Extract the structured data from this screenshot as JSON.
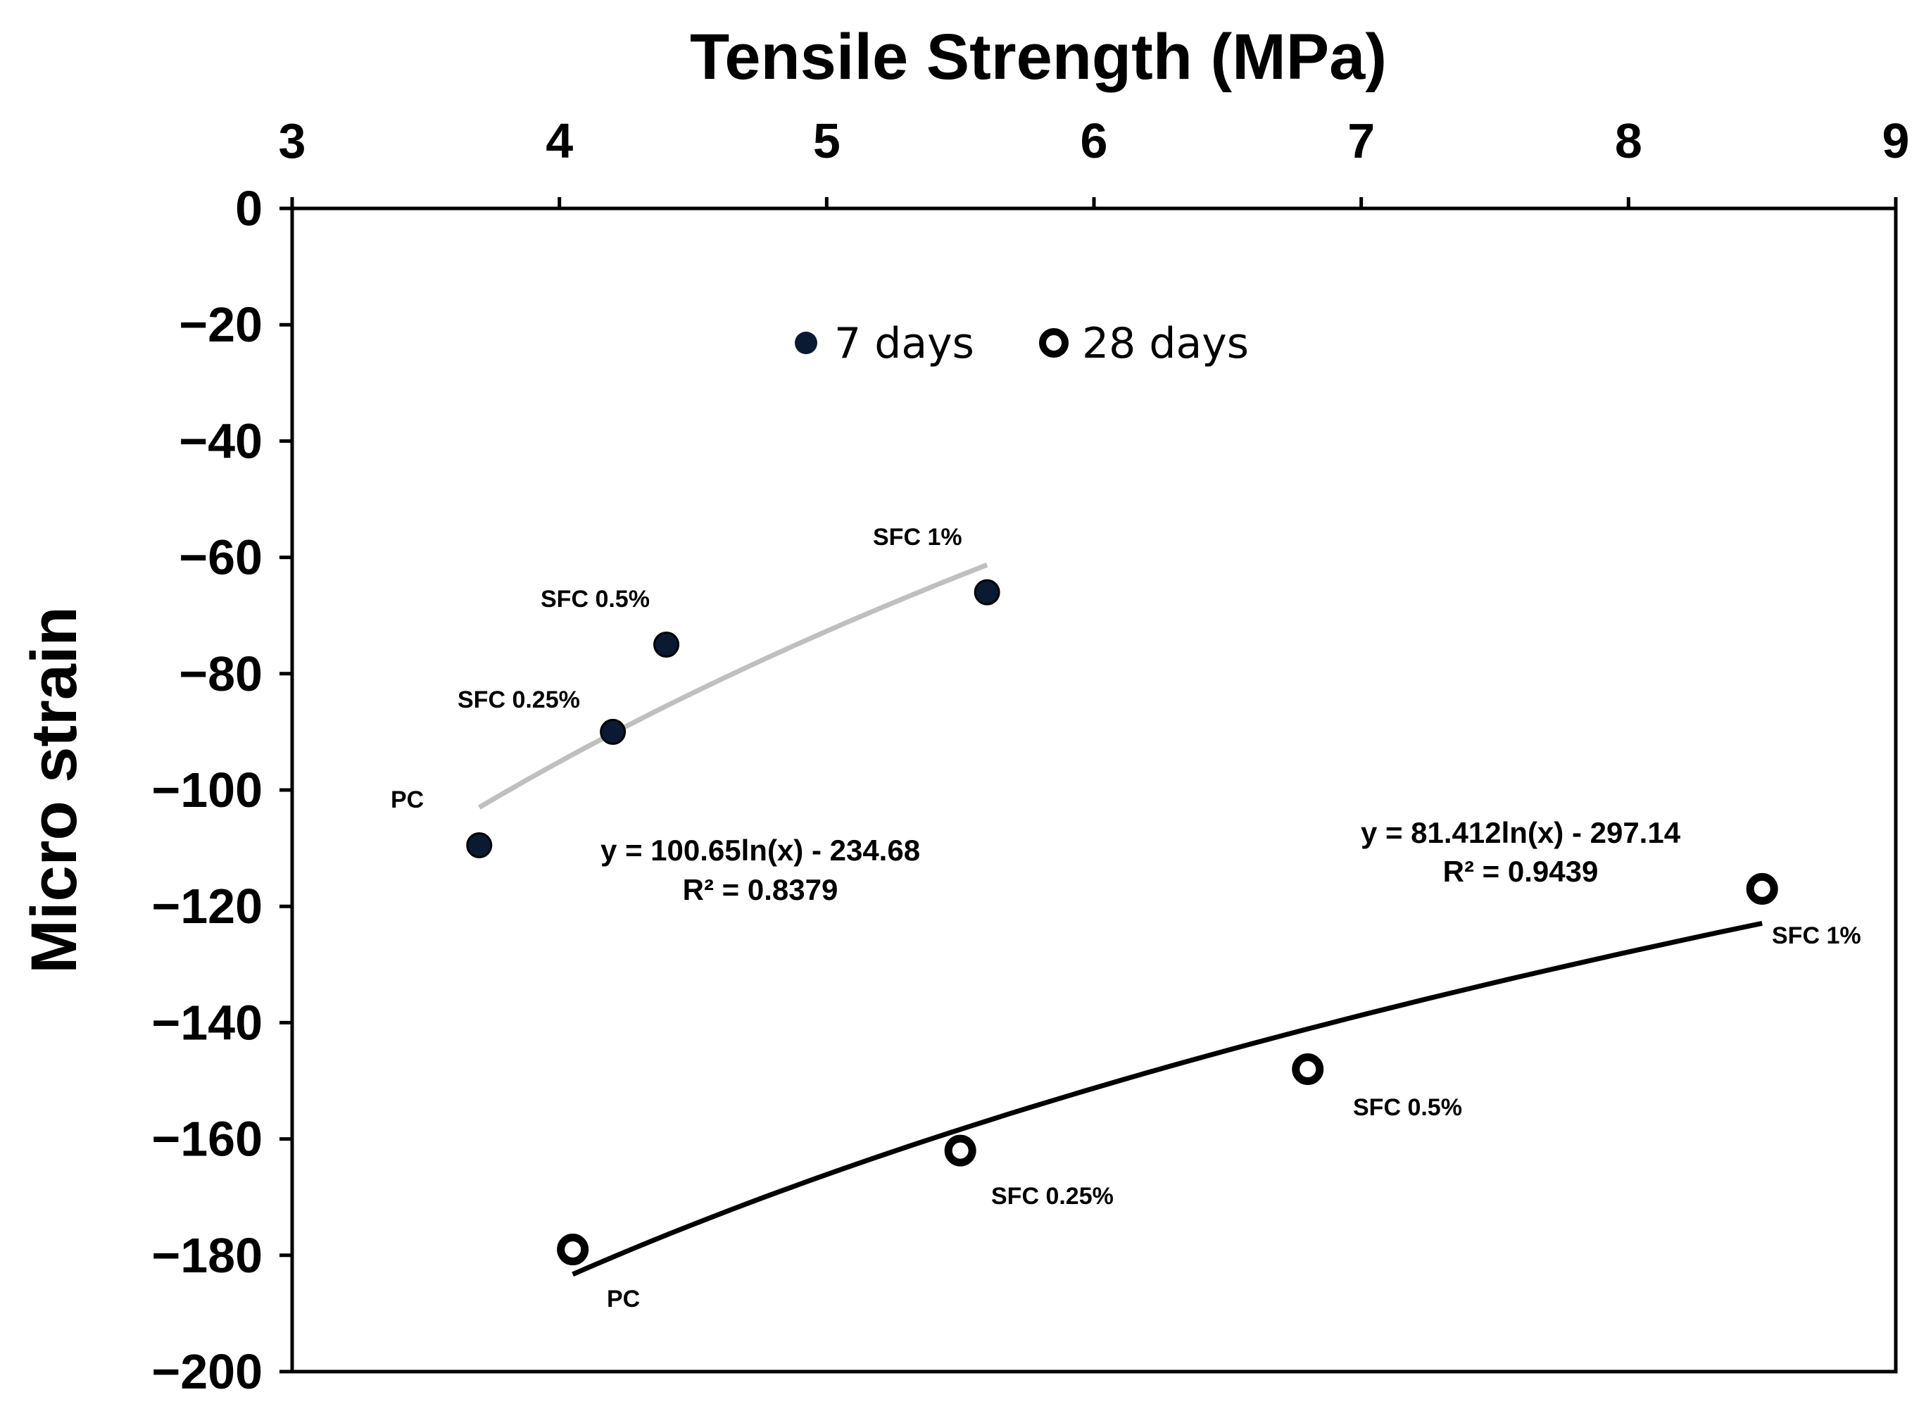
{
  "chart_data": {
    "type": "scatter",
    "title": "",
    "xlabel": "Tensile Strength (MPa)",
    "ylabel": "Micro strain",
    "xlim": [
      3,
      9
    ],
    "ylim": [
      -200,
      0
    ],
    "x_ticks": [
      "3",
      "4",
      "5",
      "6",
      "7",
      "8",
      "9"
    ],
    "y_ticks": [
      "0",
      "−20",
      "−40",
      "−60",
      "−80",
      "−100",
      "−120",
      "−140",
      "−160",
      "−180",
      "−200"
    ],
    "x_axis_position": "top",
    "grid": false,
    "legend_position": "top-center",
    "series": [
      {
        "name": "7 days",
        "marker": "filled",
        "color": "#0a1a33",
        "points": [
          {
            "x": 3.7,
            "y": -109.5,
            "label": "PC"
          },
          {
            "x": 4.2,
            "y": -90,
            "label": "SFC 0.25%"
          },
          {
            "x": 4.4,
            "y": -75,
            "label": "SFC 0.5%"
          },
          {
            "x": 5.6,
            "y": -66,
            "label": "SFC 1%"
          }
        ],
        "trendline": {
          "type": "log",
          "a": 100.65,
          "b": -234.68,
          "x_range": [
            3.7,
            5.6
          ],
          "color": "#bfbfbf",
          "equation": "y = 100.65ln(x) - 234.68",
          "r2": "R² = 0.8379"
        }
      },
      {
        "name": "28 days",
        "marker": "open",
        "color": "#000000",
        "points": [
          {
            "x": 4.05,
            "y": -179,
            "label": "PC"
          },
          {
            "x": 5.5,
            "y": -162,
            "label": "SFC 0.25%"
          },
          {
            "x": 6.8,
            "y": -148,
            "label": "SFC 0.5%"
          },
          {
            "x": 8.5,
            "y": -117,
            "label": "SFC 1%"
          }
        ],
        "trendline": {
          "type": "log",
          "a": 81.412,
          "b": -297.14,
          "x_range": [
            4.05,
            8.5
          ],
          "color": "#000000",
          "equation": "y = 81.412ln(x) - 297.14",
          "r2": "R² = 0.9439"
        }
      }
    ]
  }
}
